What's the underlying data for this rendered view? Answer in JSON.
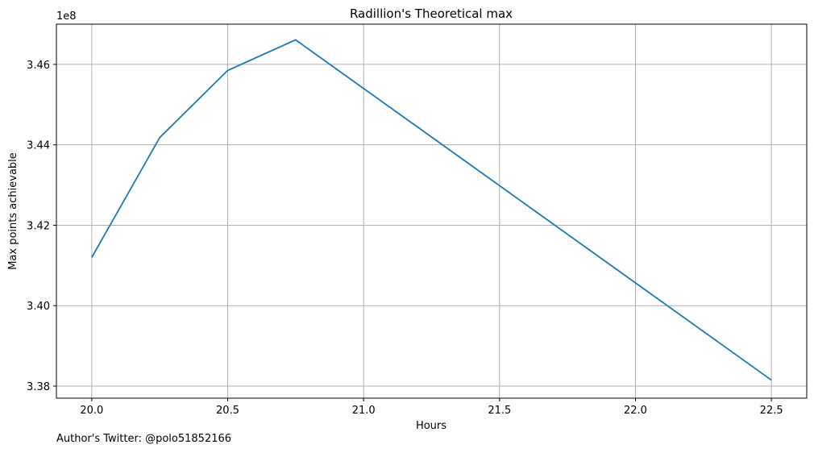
{
  "chart_data": {
    "type": "line",
    "title": "Radillion's Theoretical max",
    "xlabel": "Hours",
    "ylabel": "Max points achievable",
    "y_offset_label": "1e8",
    "x_ticks": [
      "20.0",
      "20.5",
      "21.0",
      "21.5",
      "22.0",
      "22.5"
    ],
    "y_ticks": [
      "3.38",
      "3.40",
      "3.42",
      "3.44",
      "3.46"
    ],
    "xlim": [
      19.87,
      22.63
    ],
    "ylim": [
      337700000,
      347000000
    ],
    "grid": true,
    "line_color": "#1f77b4",
    "series": [
      {
        "x": [
          20.0,
          20.25,
          20.5,
          20.75,
          22.5
        ],
        "y": [
          341200000,
          344180000,
          345850000,
          346610000,
          338150000
        ]
      }
    ]
  },
  "footer": {
    "text": "Author's Twitter: @polo51852166"
  }
}
